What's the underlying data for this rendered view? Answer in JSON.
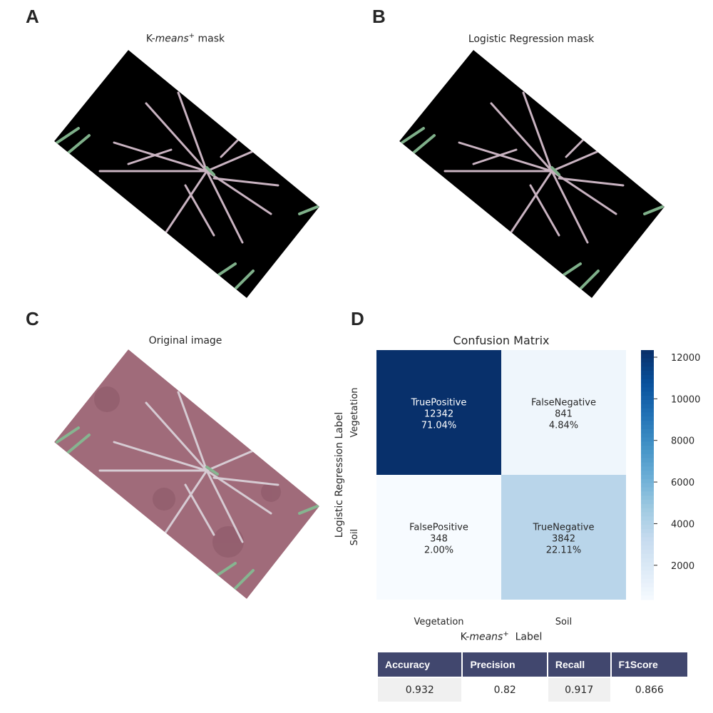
{
  "panels": {
    "a": {
      "letter": "A",
      "title_prefix": "K-",
      "title_italic": "means",
      "title_sup": "+",
      "title_suffix": " mask"
    },
    "b": {
      "letter": "B",
      "title": "Logistic Regression mask"
    },
    "c": {
      "letter": "C",
      "title": "Original image"
    },
    "d": {
      "letter": "D"
    }
  },
  "chart_data": {
    "type": "heatmap",
    "title": "Confusion Matrix",
    "ylabel": "Logistic Regression Label",
    "xlabel_prefix": "K-",
    "xlabel_italic": "means",
    "xlabel_sup": "+",
    "xlabel_suffix": "  Label",
    "row_labels": [
      "Vegetation",
      "Soil"
    ],
    "col_labels": [
      "Vegetation",
      "Soil"
    ],
    "cells": [
      [
        {
          "name": "TruePositive",
          "count": "12342",
          "percent": "71.04%",
          "value": 12342
        },
        {
          "name": "FalseNegative",
          "count": "841",
          "percent": "4.84%",
          "value": 841
        }
      ],
      [
        {
          "name": "FalsePositive",
          "count": "348",
          "percent": "2.00%",
          "value": 348
        },
        {
          "name": "TrueNegative",
          "count": "3842",
          "percent": "22.11%",
          "value": 3842
        }
      ]
    ],
    "colorbar": {
      "min": 348,
      "max": 12342,
      "ticks": [
        2000,
        4000,
        6000,
        8000,
        10000,
        12000
      ],
      "colormap": "Blues"
    }
  },
  "metrics": {
    "headers": [
      "Accuracy",
      "Precision",
      "Recall",
      "F1Score"
    ],
    "values": [
      "0.932",
      "0.82",
      "0.917",
      "0.866"
    ]
  },
  "colors": {
    "header_bg": "#41476e",
    "dark_cell": "#08306b",
    "light_cell": "#f7fbff",
    "mid_cell": "#b9d5ea"
  }
}
